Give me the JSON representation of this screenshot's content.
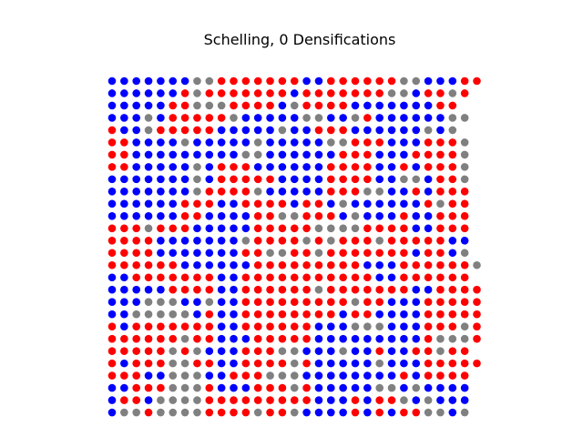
{
  "chart_data": {
    "type": "scatter",
    "title": "Schelling, 0 Densifications",
    "xlabel": "",
    "ylabel": "",
    "grid": false,
    "axes_visible": false,
    "legend": "none",
    "xlim": [
      0,
      31
    ],
    "ylim": [
      0,
      31
    ],
    "colors": {
      "B": "#0000ff",
      "R": "#ff0000",
      "G": "#808080"
    },
    "grid_rows_top_to_bottom": [
      "BBBBBBBGGRRRRRRRBBRRRRRRGGBBBRR",
      "BBBBBBRGRRRRRRRBRRRRRRRGGBRRGR",
      "BBBBBRRGGGRRRRBGRRRRBBBBBBBRR",
      "BBBGBRRRRRGBBBBBGGBBGRBBBBBBGG",
      "RBBGRRRRRBBBBBGBBRRRBBBBBBGBG",
      "RRBBBBGBBBBBGBBBBBGGRRRBBBRRRG",
      "RRBBBBBBBBBGGBBBBBBRRRBBBRRRRG",
      "RRBBBBBGBRRRBBBBBBRRRRBBRBRRRG",
      "BBBBBBBGBRRRRRBBBBRRRRBBGGBRRG",
      "BBBBBBBGRRRRGBBBBBRRRGGBBRBRRR",
      "BBBBBBRRRBBRRRRBRRBGBBBBBBRGRR",
      "BBBBBBRRBBBBRRGGRRRBGBBBRBBRRR",
      "RRRGRRRBBBBBRRRRRGGGGRRRRBBRRR",
      "RRRRBBBBBBBGRRRRGRGRRRGRRRRRBB",
      "RRRRBBBBBBBRRGGRRGRRRRRRRBRRBG",
      "RRRRRRBBBBBBRRRRRRRRRBBBRRRRRRG",
      "BBRRRRRRRBBRRRRRRRRRRRBBRRRRRR",
      "BBBBBRRRRBBRRRRRRGRRRRRRRBBRRRR",
      "BBBGGGBBGBBRRRRRRRRRGRRBBBRRRRR",
      "BBGGGGGBRBBRRRRRRRRBRRBBBBRRRRR",
      "RBRRRRRRRBBRRRRRRBBBGGGBBBRRRGR",
      "RRRRRRGRRBBBRRRRRBBBBBBBBBRGGGR",
      "RRRRRGRGBBBRRRGGBBBGBBRBBRRGRR",
      "RBRRRGGRRBBRRRRGRBBBBBGBBBRRRRR",
      "RRRBBGGGBBRRRGGGBBBBBBBBRBRRRR",
      "BBRRRGGGRBBBRRRGRBBBBBGGBGBBBB",
      "BRRBGGGGRRRRRRRRRBBBRBRRGBGBBB",
      "BGGRGGGGRRRRGRRGBBBBRBRBRRGGBG"
    ]
  }
}
